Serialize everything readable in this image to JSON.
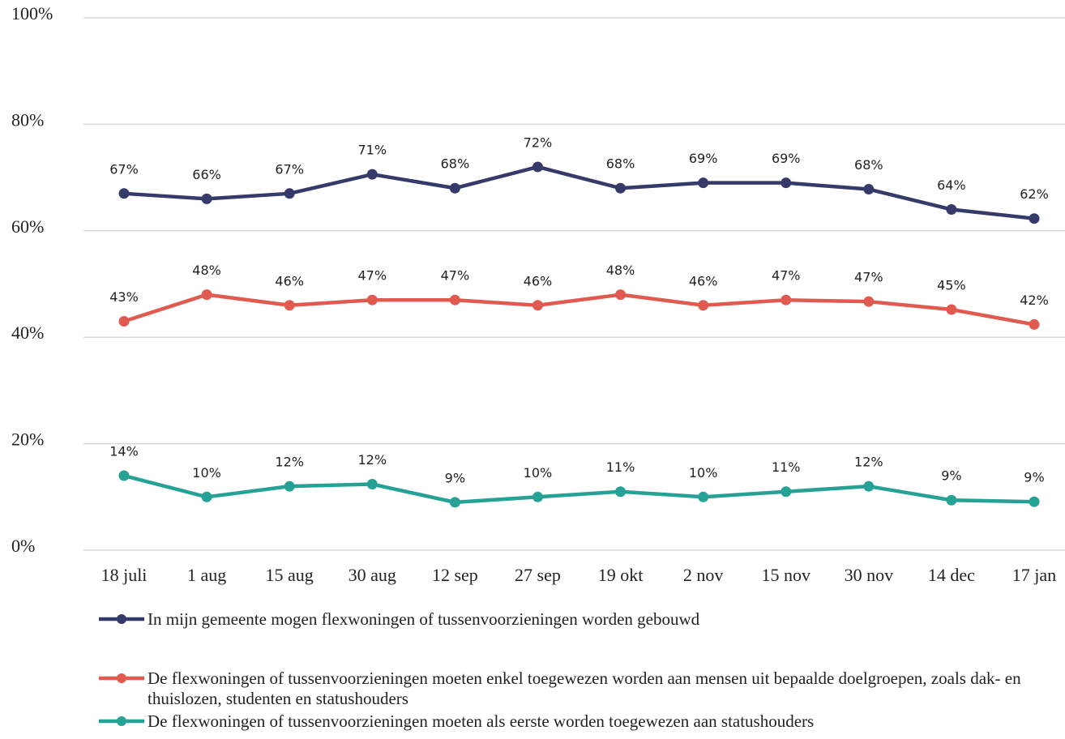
{
  "chart_data": {
    "type": "line",
    "categories": [
      "18 juli",
      "1 aug",
      "15 aug",
      "30 aug",
      "12 sep",
      "27 sep",
      "19 okt",
      "2 nov",
      "15 nov",
      "30 nov",
      "14 dec",
      "17 jan"
    ],
    "series": [
      {
        "name": "In mijn gemeente mogen flexwoningen of tussenvoorzieningen worden gebouwd",
        "color": "#353a6b",
        "values": [
          67,
          66,
          67,
          70.6,
          68,
          72,
          68,
          69,
          69,
          67.8,
          64,
          62.3
        ],
        "value_labels": [
          "67%",
          "66%",
          "67%",
          "71%",
          "68%",
          "72%",
          "68%",
          "69%",
          "69%",
          "68%",
          "64%",
          "62%"
        ]
      },
      {
        "name": "De flexwoningen of tussenvoorzieningen moeten enkel toegewezen worden aan mensen uit bepaalde doelgroepen, zoals dak- en thuislozen, studenten en statushouders",
        "color": "#e05a50",
        "values": [
          43,
          48,
          46,
          47,
          47,
          46,
          48,
          46,
          47,
          46.7,
          45.2,
          42.4
        ],
        "value_labels": [
          "43%",
          "48%",
          "46%",
          "47%",
          "47%",
          "46%",
          "48%",
          "46%",
          "47%",
          "47%",
          "45%",
          "42%"
        ]
      },
      {
        "name": "De flexwoningen of tussenvoorzieningen moeten als eerste worden toegewezen aan statushouders",
        "color": "#26a196",
        "values": [
          14,
          10,
          12,
          12.4,
          9,
          10,
          11,
          10,
          11,
          12,
          9.4,
          9.1
        ],
        "value_labels": [
          "14%",
          "10%",
          "12%",
          "12%",
          "9%",
          "10%",
          "11%",
          "10%",
          "11%",
          "12%",
          "9%",
          "9%"
        ]
      }
    ],
    "ylim": [
      0,
      100
    ],
    "yticks": [
      {
        "value": 0,
        "label": "0%"
      },
      {
        "value": 20,
        "label": "20%"
      },
      {
        "value": 40,
        "label": "40%"
      },
      {
        "value": 60,
        "label": "60%"
      },
      {
        "value": 80,
        "label": "80%"
      },
      {
        "value": 100,
        "label": "100%"
      }
    ],
    "grid": true
  }
}
